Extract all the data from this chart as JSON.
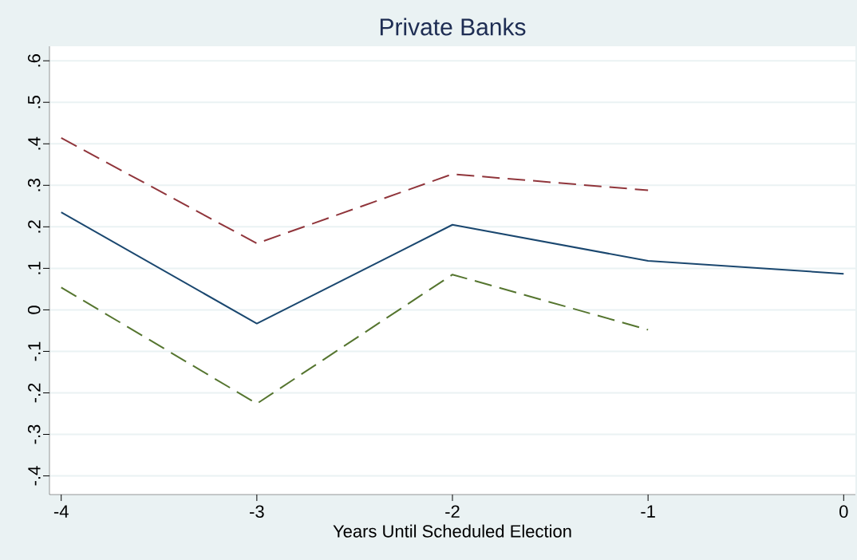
{
  "chart_data": {
    "type": "line",
    "title": "Private Banks",
    "xlabel": "Years Until Scheduled Election",
    "x": [
      -4,
      -3,
      -2,
      -1,
      0
    ],
    "series": [
      {
        "color": "#1a476f",
        "line_style": "solid",
        "values": [
          0.235,
          -0.033,
          0.205,
          0.118,
          0.087
        ]
      },
      {
        "color": "#90353b",
        "line_style": "dashed",
        "values": [
          0.414,
          0.16,
          0.327,
          0.288,
          null
        ]
      },
      {
        "color": "#55752f",
        "line_style": "dashed",
        "values": [
          0.054,
          -0.226,
          0.085,
          -0.048,
          null
        ]
      }
    ],
    "xlim": [
      -4.06,
      0.06
    ],
    "ylim": [
      -0.445,
      0.635
    ],
    "xticks": [
      -4,
      -3,
      -2,
      -1,
      0
    ],
    "yticks": [
      {
        "value": -0.4,
        "label": "-.4"
      },
      {
        "value": -0.3,
        "label": "-.3"
      },
      {
        "value": -0.2,
        "label": "-.2"
      },
      {
        "value": -0.1,
        "label": "-.1"
      },
      0,
      {
        "value": 0.1,
        "label": ".1"
      },
      {
        "value": 0.2,
        "label": ".2"
      },
      {
        "value": 0.3,
        "label": ".3"
      },
      {
        "value": 0.4,
        "label": ".4"
      },
      {
        "value": 0.5,
        "label": ".5"
      },
      {
        "value": 0.6,
        "label": ".6"
      }
    ],
    "grid": "y",
    "marker": "none"
  }
}
